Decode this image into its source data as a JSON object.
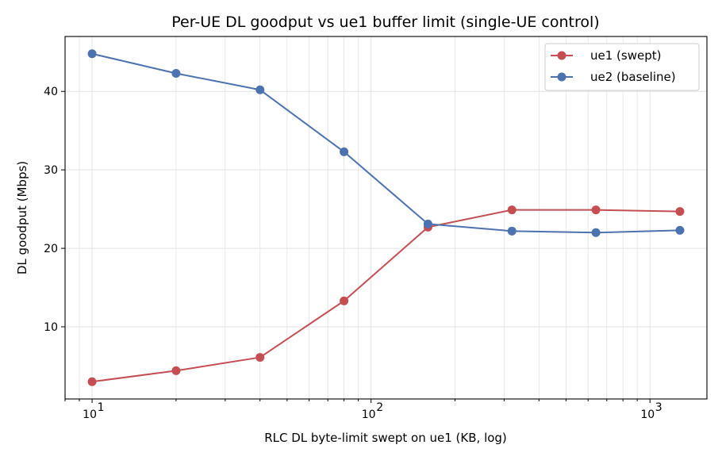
{
  "chart_data": {
    "type": "line",
    "title": "Per-UE DL goodput vs ue1 buffer limit (single-UE control)",
    "xlabel": "RLC DL byte-limit swept on ue1 (KB, log)",
    "ylabel": "DL goodput (Mbps)",
    "xscale": "log",
    "xlim": [
      8,
      1600
    ],
    "ylim": [
      0.8,
      47.0
    ],
    "x": [
      10,
      20,
      40,
      80,
      160,
      320,
      640,
      1280
    ],
    "xticks": [
      {
        "value": 10,
        "base": "10",
        "exp": "1"
      },
      {
        "value": 100,
        "base": "10",
        "exp": "2"
      },
      {
        "value": 1000,
        "base": "10",
        "exp": "3"
      }
    ],
    "yticks": [
      10,
      20,
      30,
      40
    ],
    "grid": true,
    "legend_position": "top-right",
    "series": [
      {
        "name": "ue1 (swept)",
        "color": "#c44e52",
        "values": [
          3.0,
          4.4,
          6.1,
          13.3,
          22.7,
          24.9,
          24.9,
          24.7
        ]
      },
      {
        "name": "ue2 (baseline)",
        "color": "#4c72b0",
        "values": [
          44.8,
          42.3,
          40.2,
          32.3,
          23.1,
          22.2,
          22.0,
          22.3
        ]
      }
    ]
  }
}
